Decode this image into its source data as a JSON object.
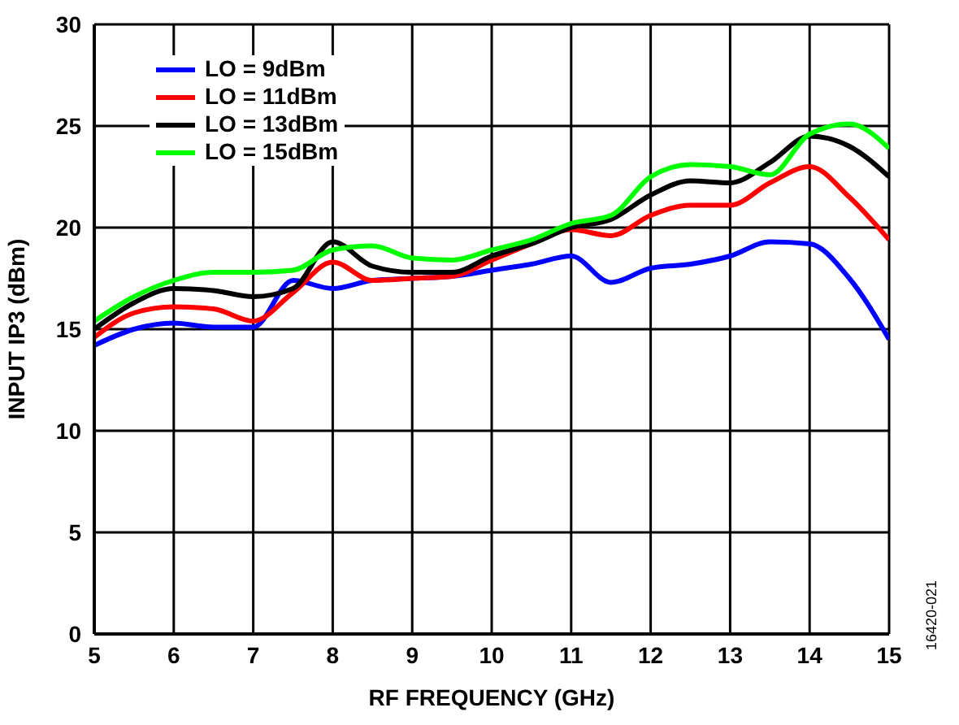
{
  "chart_data": {
    "type": "line",
    "xlabel": "RF FREQUENCY (GHz)",
    "ylabel": "INPUT IP3 (dBm)",
    "x": [
      5,
      5.5,
      6,
      6.5,
      7,
      7.5,
      8,
      8.5,
      9,
      9.5,
      10,
      10.5,
      11,
      11.5,
      12,
      12.5,
      13,
      13.5,
      14,
      14.5,
      15
    ],
    "series": [
      {
        "name": "LO = 9dBm",
        "color": "#0000ff",
        "values": [
          14.2,
          15.0,
          15.3,
          15.1,
          15.1,
          17.4,
          17.0,
          17.4,
          17.5,
          17.6,
          17.9,
          18.2,
          18.6,
          17.3,
          18.0,
          18.2,
          18.6,
          19.3,
          19.2,
          17.5,
          14.5
        ]
      },
      {
        "name": "LO = 11dBm",
        "color": "#ff0000",
        "values": [
          14.6,
          15.8,
          16.1,
          16.0,
          15.4,
          16.8,
          18.3,
          17.4,
          17.5,
          17.6,
          18.4,
          19.2,
          19.9,
          19.6,
          20.6,
          21.1,
          21.1,
          22.2,
          23.0,
          21.5,
          19.4
        ]
      },
      {
        "name": "LO = 13dBm",
        "color": "#000000",
        "values": [
          15.0,
          16.3,
          17.0,
          16.9,
          16.6,
          17.0,
          19.3,
          18.1,
          17.8,
          17.8,
          18.6,
          19.2,
          20.0,
          20.4,
          21.6,
          22.3,
          22.2,
          23.2,
          24.5,
          24.0,
          22.5
        ]
      },
      {
        "name": "LO = 15dBm",
        "color": "#00ff00",
        "values": [
          15.4,
          16.6,
          17.4,
          17.8,
          17.8,
          17.9,
          18.9,
          19.1,
          18.5,
          18.4,
          18.9,
          19.4,
          20.2,
          20.6,
          22.5,
          23.1,
          23.0,
          22.6,
          24.6,
          25.1,
          23.9
        ]
      }
    ],
    "xlim": [
      5,
      15
    ],
    "xticks": [
      5,
      6,
      7,
      8,
      9,
      10,
      11,
      12,
      13,
      14,
      15
    ],
    "ylim": [
      0,
      30
    ],
    "yticks": [
      0,
      5,
      10,
      15,
      20,
      25,
      30
    ],
    "grid": true,
    "legend": "top left",
    "marker": "none",
    "line_style": "solid",
    "annotations": [
      "16420-021"
    ]
  }
}
